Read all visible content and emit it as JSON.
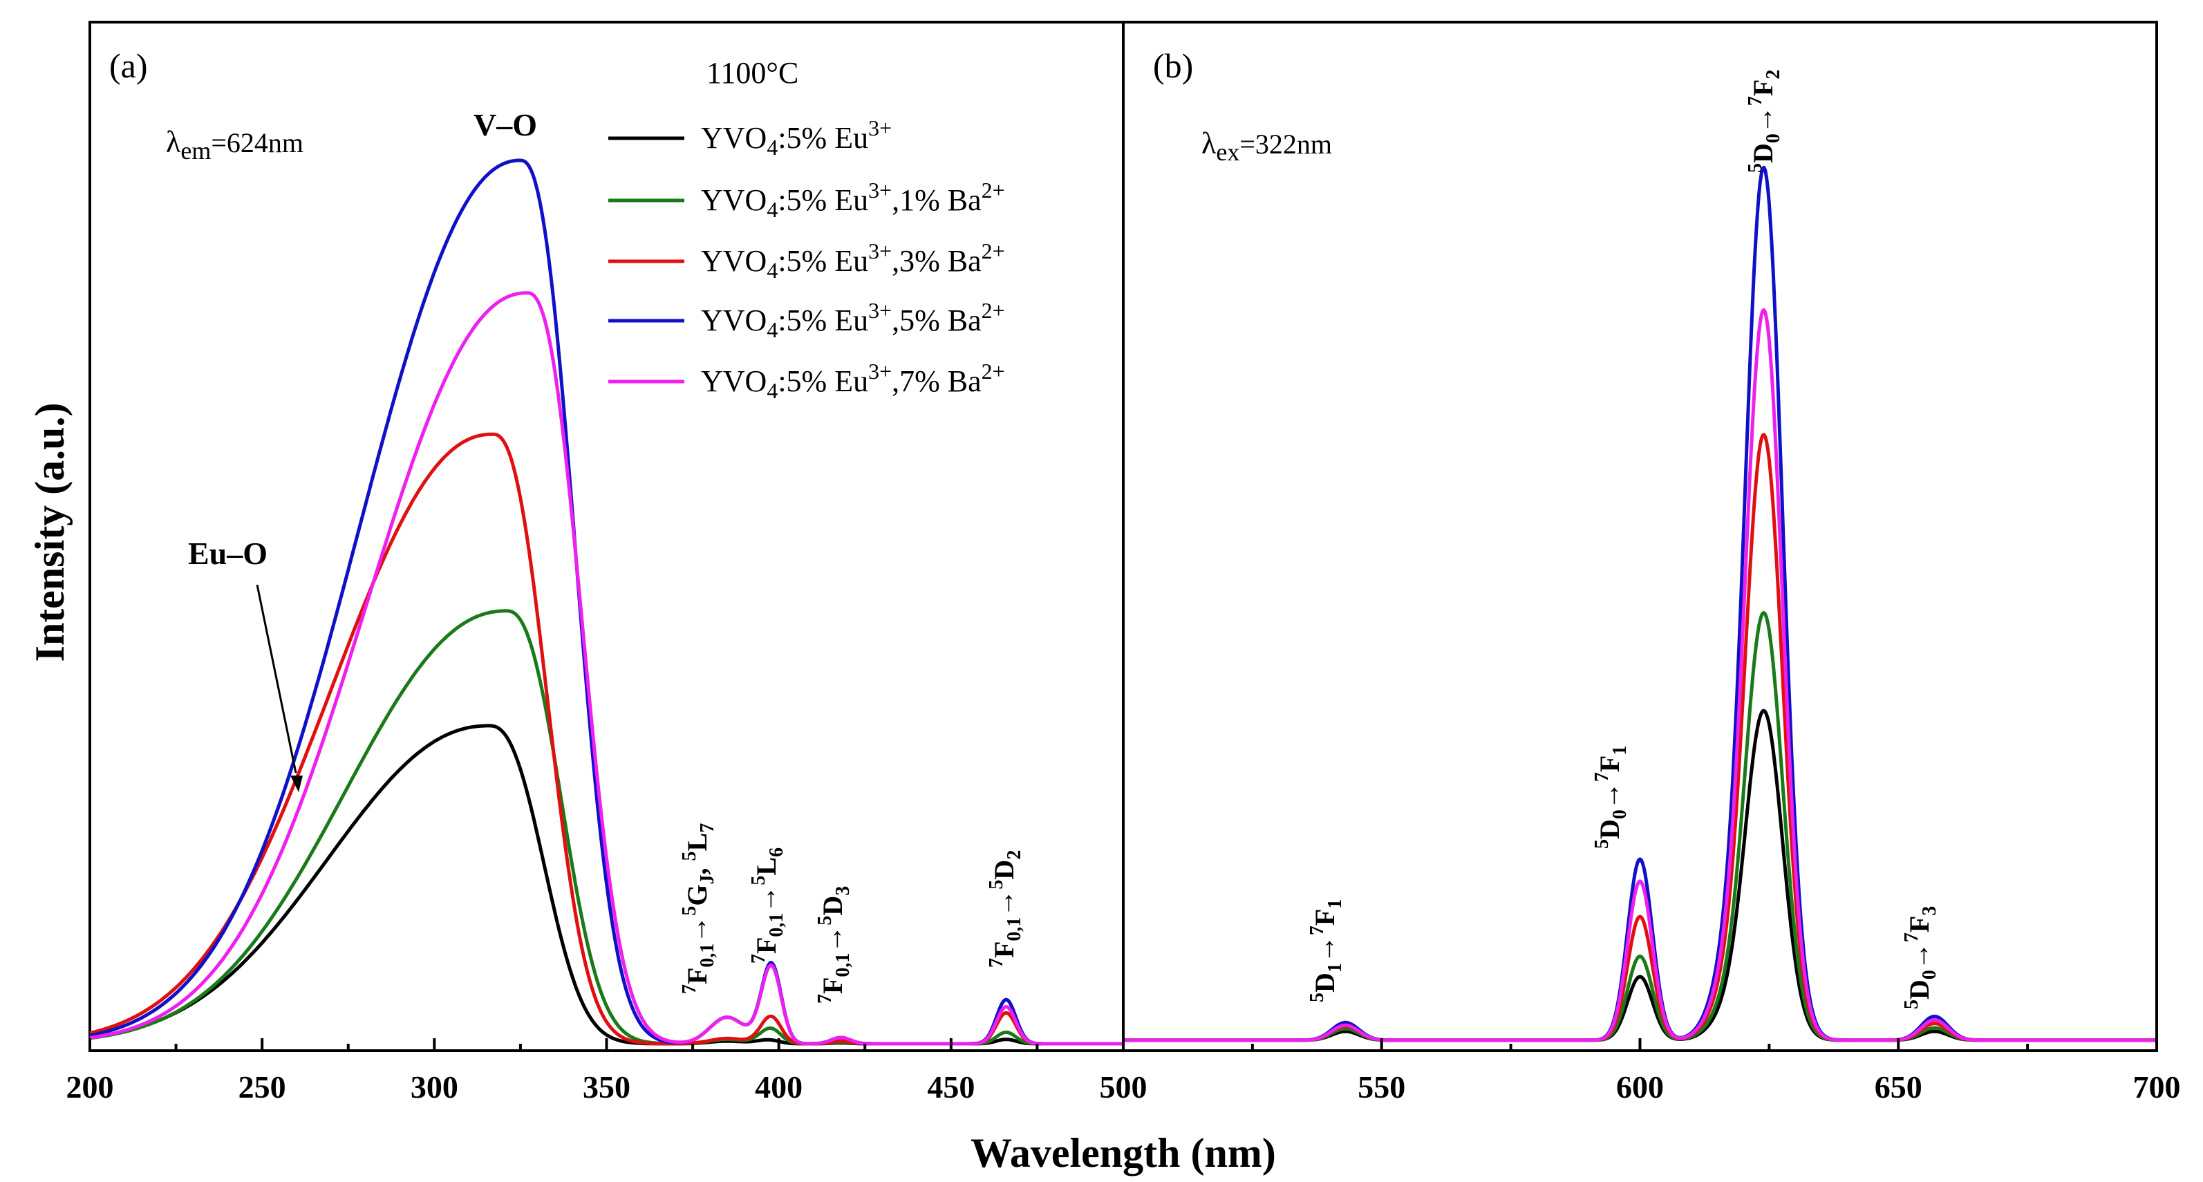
{
  "chart_data": [
    {
      "panel": "(a)",
      "type": "line",
      "title": "1100°C",
      "xlabel": "Wavelength  (nm)",
      "ylabel": "Intensity (a.u.)",
      "xlim": [
        200,
        500
      ],
      "ylim": [
        0,
        1.0
      ],
      "xticks": [
        200,
        250,
        300,
        350,
        400,
        450,
        500
      ],
      "annotations": {
        "lambda_prefix": "λ",
        "lambda_sub": "em",
        "lambda_value": "=624nm",
        "vo": "V–O",
        "euo": "Eu–O"
      },
      "peak_labels": [
        {
          "id": "p1",
          "lhs_sup": "7",
          "lhs": "F",
          "lhs_sub": "0,1",
          "arrow": "→",
          "rhs_sup": "5",
          "rhs": "G",
          "rhs_sub": "J",
          "rhs2_sup": "5",
          "rhs2": "L",
          "rhs2_sub": "7",
          "sep": ", "
        },
        {
          "id": "p2",
          "lhs_sup": "7",
          "lhs": "F",
          "lhs_sub": "0,1",
          "arrow": "→",
          "rhs_sup": "5",
          "rhs": "L",
          "rhs_sub": "6"
        },
        {
          "id": "p3",
          "lhs_sup": "7",
          "lhs": "F",
          "lhs_sub": "0,1",
          "arrow": "→",
          "rhs_sup": "5",
          "rhs": "D",
          "rhs_sub": "3"
        },
        {
          "id": "p4",
          "lhs_sup": "7",
          "lhs": "F",
          "lhs_sub": "0,1",
          "arrow": "→",
          "rhs_sup": "5",
          "rhs": "D",
          "rhs_sub": "2"
        }
      ],
      "series": [
        {
          "name": "YVO4:5% Eu3+",
          "color": "#000000",
          "peak_wl": 316,
          "peak": 0.36,
          "lines": {
            "385": 0.003,
            "395": 0.002,
            "398": 0.003,
            "418": 0.001,
            "466": 0.005
          }
        },
        {
          "name": "YVO4:5% Eu3+,1% Ba2+",
          "color": "#1a7a1a",
          "peak_wl": 321,
          "peak": 0.49,
          "lines": {
            "385": 0.005,
            "395": 0.004,
            "398": 0.015,
            "418": 0.002,
            "466": 0.013
          }
        },
        {
          "name": "YVO4:5% Eu3+,3% Ba2+",
          "color": "#e01010",
          "peak_wl": 317,
          "peak": 0.69,
          "lines": {
            "385": 0.006,
            "395": 0.005,
            "398": 0.028,
            "418": 0.003,
            "466": 0.035
          }
        },
        {
          "name": "YVO4:5% Eu3+,5% Ba2+",
          "color": "#1010c8",
          "peak_wl": 325,
          "peak": 1.0,
          "lines": {
            "385": 0.03,
            "395": 0.01,
            "398": 0.085,
            "418": 0.007,
            "466": 0.05
          }
        },
        {
          "name": "YVO4:5% Eu3+,7% Ba2+",
          "color": "#ee20ee",
          "peak_wl": 327,
          "peak": 0.85,
          "lines": {
            "385": 0.03,
            "395": 0.01,
            "398": 0.082,
            "418": 0.007,
            "466": 0.042
          }
        }
      ]
    },
    {
      "panel": "(b)",
      "type": "line",
      "xlabel": "Wavelength  (nm)",
      "xlim": [
        500,
        700
      ],
      "ylim": [
        0,
        1.0
      ],
      "xticks": [
        550,
        600,
        650,
        700
      ],
      "annotations": {
        "lambda_prefix": "λ",
        "lambda_sub": "ex",
        "lambda_value": "=322nm"
      },
      "peak_labels": [
        {
          "id": "q1",
          "lhs_sup": "5",
          "lhs": "D",
          "lhs_sub": "1",
          "arrow": "→",
          "rhs_sup": "7",
          "rhs": "F",
          "rhs_sub": "1"
        },
        {
          "id": "q2",
          "lhs_sup": "5",
          "lhs": "D",
          "lhs_sub": "0",
          "arrow": "→",
          "rhs_sup": "7",
          "rhs": "F",
          "rhs_sub": "1"
        },
        {
          "id": "q3",
          "lhs_sup": "5",
          "lhs": "D",
          "lhs_sub": "0",
          "arrow": "→",
          "rhs_sup": "7",
          "rhs": "F",
          "rhs_sub": "2"
        },
        {
          "id": "q4",
          "lhs_sup": "5",
          "lhs": "D",
          "lhs_sub": "0",
          "arrow": "→",
          "rhs_sup": "7",
          "rhs": "F",
          "rhs_sub": "3"
        }
      ],
      "series": [
        {
          "name": "YVO4:5% Eu3+",
          "color": "#000000",
          "peaks": {
            "543": 0.01,
            "600": 0.072,
            "624": 0.37,
            "657": 0.01
          }
        },
        {
          "name": "YVO4:5% Eu3+,1% Ba2+",
          "color": "#1a7a1a",
          "peaks": {
            "543": 0.013,
            "600": 0.095,
            "624": 0.48,
            "657": 0.014
          }
        },
        {
          "name": "YVO4:5% Eu3+,3% Ba2+",
          "color": "#e01010",
          "peaks": {
            "543": 0.016,
            "600": 0.14,
            "624": 0.68,
            "657": 0.019
          }
        },
        {
          "name": "YVO4:5% Eu3+,5% Ba2+",
          "color": "#1010c8",
          "peaks": {
            "543": 0.02,
            "600": 0.205,
            "624": 0.98,
            "657": 0.027
          }
        },
        {
          "name": "YVO4:5% Eu3+,7% Ba2+",
          "color": "#ee20ee",
          "peaks": {
            "543": 0.017,
            "600": 0.18,
            "624": 0.82,
            "657": 0.023
          }
        }
      ]
    }
  ],
  "legend": [
    {
      "base": "YVO",
      "sub": "4",
      "mid": ":5% Eu",
      "sup": "3+",
      "tail": "",
      "ba": "",
      "ba_sup": ""
    },
    {
      "base": "YVO",
      "sub": "4",
      "mid": ":5% Eu",
      "sup": "3+",
      "tail": ",1% Ba",
      "ba_sup": "2+"
    },
    {
      "base": "YVO",
      "sub": "4",
      "mid": ":5% Eu",
      "sup": "3+",
      "tail": ",3% Ba",
      "ba_sup": "2+"
    },
    {
      "base": "YVO",
      "sub": "4",
      "mid": ":5% Eu",
      "sup": "3+",
      "tail": ",5% Ba",
      "ba_sup": "2+"
    },
    {
      "base": "YVO",
      "sub": "4",
      "mid": ":5% Eu",
      "sup": "3+",
      "tail": ",7% Ba",
      "ba_sup": "2+"
    }
  ]
}
